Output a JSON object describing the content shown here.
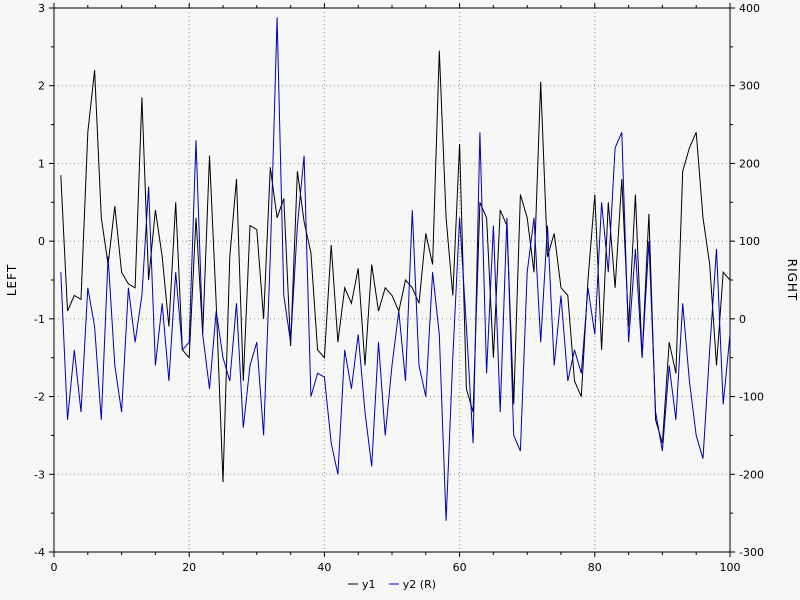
{
  "chart_data": {
    "type": "line",
    "title": "",
    "background": "#f7f7f7",
    "grid": true,
    "grid_style": "dotted",
    "grid_color": "#8a8a8a",
    "legend_position": "bottom-center",
    "x_axis": {
      "label": "",
      "min": 0,
      "max": 100,
      "tick_step": 20,
      "minor_step": 5
    },
    "left_axis": {
      "label": "LEFT",
      "min": -4,
      "max": 3,
      "tick_step": 1,
      "minor_step": 0.5
    },
    "right_axis": {
      "label": "RIGHT",
      "min": -300,
      "max": 400,
      "tick_step": 100,
      "minor_step": 50
    },
    "x": [
      1,
      2,
      3,
      4,
      5,
      6,
      7,
      8,
      9,
      10,
      11,
      12,
      13,
      14,
      15,
      16,
      17,
      18,
      19,
      20,
      21,
      22,
      23,
      24,
      25,
      26,
      27,
      28,
      29,
      30,
      31,
      32,
      33,
      34,
      35,
      36,
      37,
      38,
      39,
      40,
      41,
      42,
      43,
      44,
      45,
      46,
      47,
      48,
      49,
      50,
      51,
      52,
      53,
      54,
      55,
      56,
      57,
      58,
      59,
      60,
      61,
      62,
      63,
      64,
      65,
      66,
      67,
      68,
      69,
      70,
      71,
      72,
      73,
      74,
      75,
      76,
      77,
      78,
      79,
      80,
      81,
      82,
      83,
      84,
      85,
      86,
      87,
      88,
      89,
      90,
      91,
      92,
      93,
      94,
      95,
      96,
      97,
      98,
      99,
      100
    ],
    "series": [
      {
        "name": "y1",
        "legend_label": "y1",
        "axis": "left",
        "color": "#000000",
        "values": [
          0.85,
          -0.9,
          -0.7,
          -0.75,
          1.4,
          2.2,
          0.3,
          -0.3,
          0.45,
          -0.4,
          -0.55,
          -0.6,
          1.85,
          -0.5,
          0.4,
          -0.2,
          -1.1,
          0.5,
          -1.4,
          -1.5,
          0.3,
          -1.2,
          1.1,
          -0.8,
          -3.1,
          -0.2,
          0.8,
          -1.8,
          0.2,
          0.15,
          -1.0,
          0.95,
          0.3,
          0.55,
          -1.35,
          0.9,
          0.25,
          -0.15,
          -1.4,
          -1.5,
          -0.05,
          -1.3,
          -0.6,
          -0.8,
          -0.35,
          -1.6,
          -0.3,
          -0.9,
          -0.6,
          -0.7,
          -0.9,
          -0.5,
          -0.6,
          -0.8,
          0.1,
          -0.3,
          2.45,
          0.3,
          -0.7,
          1.25,
          -1.9,
          -2.2,
          0.5,
          0.3,
          -1.5,
          0.4,
          0.2,
          -2.1,
          0.6,
          0.3,
          -0.4,
          2.05,
          -0.2,
          0.1,
          -0.6,
          -0.7,
          -1.8,
          -2.0,
          -0.5,
          0.6,
          -1.4,
          0.5,
          -0.6,
          0.8,
          -1.1,
          0.6,
          -1.5,
          0.35,
          -2.3,
          -2.6,
          -1.3,
          -1.7,
          0.9,
          1.2,
          1.4,
          0.3,
          -0.3,
          -1.6,
          -0.4,
          -0.5
        ]
      },
      {
        "name": "y2 (R)",
        "legend_label": "y2 (R)",
        "axis": "right",
        "color": "#0000bb",
        "values": [
          60,
          -130,
          -40,
          -120,
          40,
          -10,
          -130,
          80,
          -60,
          -120,
          40,
          -30,
          30,
          170,
          -60,
          20,
          -80,
          60,
          -40,
          -30,
          230,
          -20,
          -90,
          10,
          -50,
          -80,
          20,
          -140,
          -60,
          -30,
          -150,
          80,
          388,
          30,
          -30,
          120,
          210,
          -100,
          -70,
          -75,
          -160,
          -200,
          -40,
          -90,
          -20,
          -120,
          -190,
          -30,
          -150,
          -60,
          10,
          -80,
          140,
          -60,
          -100,
          60,
          -20,
          -260,
          -50,
          130,
          -10,
          -160,
          240,
          -70,
          120,
          -120,
          130,
          -150,
          -170,
          60,
          130,
          -30,
          120,
          -60,
          30,
          -80,
          -40,
          -70,
          40,
          -20,
          150,
          60,
          220,
          240,
          -30,
          90,
          -50,
          100,
          -120,
          -170,
          -60,
          -130,
          20,
          -80,
          -150,
          -180,
          -40,
          90,
          -110,
          -20
        ]
      }
    ]
  }
}
